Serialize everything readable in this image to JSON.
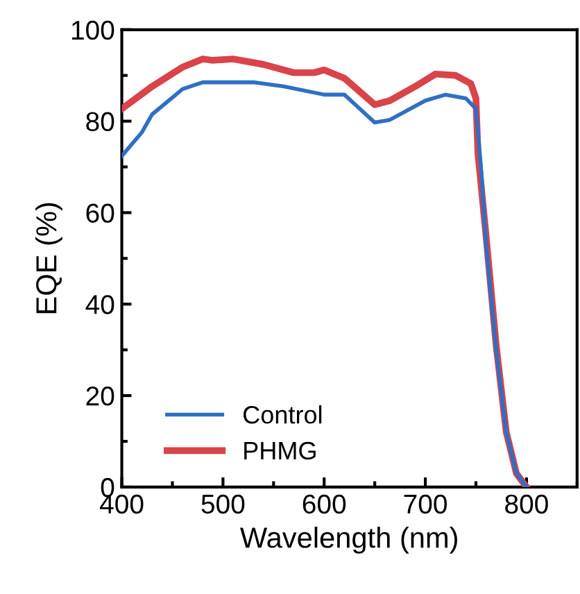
{
  "chart_data": {
    "type": "line",
    "xlabel": "Wavelength (nm)",
    "ylabel": "EQE (%)",
    "xlim": [
      400,
      850
    ],
    "xticks": [
      400,
      500,
      600,
      700,
      800
    ],
    "ylim": [
      0,
      100
    ],
    "yticks": [
      0,
      20,
      40,
      60,
      80,
      100
    ],
    "grid": false,
    "legend": "bottom left",
    "marker": "none",
    "line_style": "solid",
    "series": [
      {
        "name": "Control",
        "color": "#2f6fc4",
        "x": [
          400,
          420,
          430,
          460,
          480,
          530,
          560,
          600,
          620,
          650,
          665,
          700,
          720,
          740,
          750,
          755,
          760,
          770,
          780,
          790,
          800
        ],
        "values": [
          72.4,
          77.6,
          81.5,
          87,
          88.5,
          88.5,
          87.6,
          85.8,
          85.8,
          79.7,
          80.3,
          84.5,
          85.8,
          85,
          82.7,
          70,
          53,
          30,
          12,
          3,
          0
        ]
      },
      {
        "name": "PHMG",
        "color": "#d9434a",
        "x": [
          400,
          430,
          460,
          480,
          490,
          510,
          540,
          570,
          590,
          600,
          620,
          650,
          665,
          690,
          710,
          730,
          745,
          750,
          752,
          760,
          770,
          780,
          790,
          800
        ],
        "values": [
          82.7,
          87.6,
          91.8,
          93.6,
          93.3,
          93.6,
          92.4,
          90.6,
          90.6,
          91.2,
          89.4,
          83.6,
          84.5,
          87.6,
          90.3,
          90,
          88.2,
          85,
          73,
          55,
          31,
          12,
          3,
          0
        ]
      }
    ]
  }
}
